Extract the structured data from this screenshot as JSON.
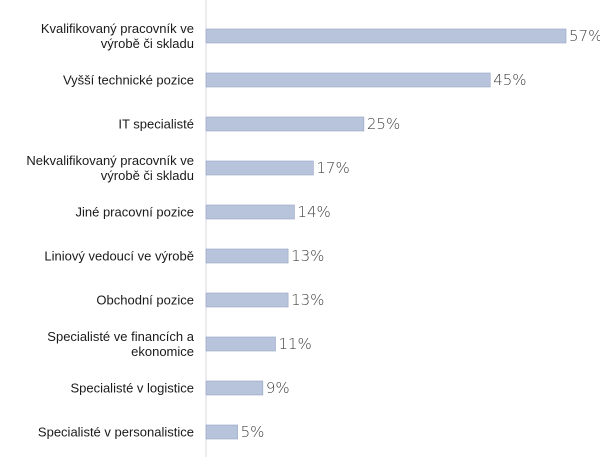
{
  "chart_data": {
    "type": "bar",
    "orientation": "horizontal",
    "categories": [
      [
        "Kvalifikovaný pracovník ve",
        "výrobě či skladu"
      ],
      [
        "Vyšší technické pozice"
      ],
      [
        "IT specialisté"
      ],
      [
        "Nekvalifikovaný pracovník ve",
        "výrobě či skladu"
      ],
      [
        "Jiné pracovní pozice"
      ],
      [
        "Liniový vedoucí ve výrobě"
      ],
      [
        "Obchodní pozice"
      ],
      [
        "Specialisté ve financích a",
        "ekonomice"
      ],
      [
        "Specialisté v logistice"
      ],
      [
        "Specialisté v personalistice"
      ]
    ],
    "values": [
      57,
      45,
      25,
      17,
      14,
      13,
      13,
      11,
      9,
      5
    ],
    "value_labels": [
      "57%",
      "45%",
      "25%",
      "17%",
      "14%",
      "13%",
      "13%",
      "11%",
      "9%",
      "5%"
    ],
    "unit": "%",
    "xlim": [
      0,
      57
    ],
    "grid": false,
    "legend": "none",
    "colors": {
      "bar_fill": "#b8c4dc",
      "bar_stroke": "#94a3c4",
      "axis": "#d9d9d9",
      "label": "#1a1a1a",
      "value": "#444444"
    }
  }
}
